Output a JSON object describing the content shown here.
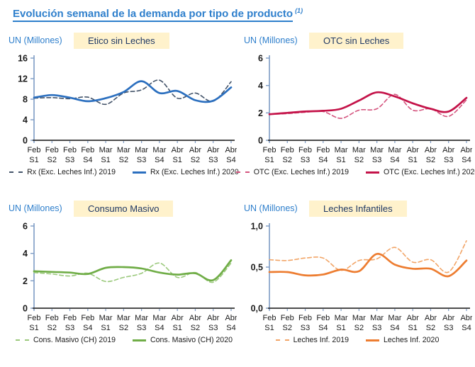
{
  "page_title": {
    "text": "Evolución semanal de la demanda por tipo de producto",
    "footnote_marker": "(1)"
  },
  "styles": {
    "accent_blue": "#2E7FCC",
    "box_bg": "#FFF2CC",
    "box_text": "#1F3864",
    "y_axis_color": "#7D9BC4",
    "x_axis_color": "#333333",
    "tick_text": "#1A1A1A"
  },
  "chart_data": [
    {
      "type": "line",
      "title": "Etico sin Leches",
      "ylabel": "UN (Millones)",
      "ylim": [
        0,
        16
      ],
      "yticks": [
        {
          "value": 0,
          "label": "0"
        },
        {
          "value": 4,
          "label": "4"
        },
        {
          "value": 8,
          "label": "8"
        },
        {
          "value": 12,
          "label": "12"
        },
        {
          "value": 16,
          "label": "16"
        }
      ],
      "categories": [
        "Feb S1",
        "Feb S2",
        "Feb S3",
        "Feb S4",
        "Mar S1",
        "Mar S2",
        "Mar S3",
        "Mar S4",
        "Abr S1",
        "Abr S2",
        "Abr S3",
        "Abr S4"
      ],
      "grid": false,
      "legend_position": "bottom",
      "series": [
        {
          "name": "Rx (Exc. Leches Inf.) 2019",
          "style": "dashed",
          "color": "#44546A",
          "values": [
            8.2,
            8.3,
            8.1,
            8.4,
            7.0,
            9.2,
            9.8,
            11.7,
            8.2,
            9.2,
            7.6,
            11.4
          ]
        },
        {
          "name": "Rx (Exc. Leches Inf.) 2020",
          "style": "solid",
          "color": "#2B6FBF",
          "values": [
            8.3,
            8.8,
            8.3,
            7.6,
            8.2,
            9.4,
            11.5,
            9.2,
            9.6,
            7.8,
            7.7,
            10.3
          ]
        }
      ]
    },
    {
      "type": "line",
      "title": "OTC sin Leches",
      "ylabel": "UN (Millones)",
      "ylim": [
        0,
        6
      ],
      "yticks": [
        {
          "value": 0,
          "label": "0"
        },
        {
          "value": 2,
          "label": "2"
        },
        {
          "value": 4,
          "label": "4"
        },
        {
          "value": 6,
          "label": "6"
        }
      ],
      "categories": [
        "Feb S1",
        "Feb S2",
        "Feb S3",
        "Feb S4",
        "Mar S1",
        "Mar S2",
        "Mar S3",
        "Mar S4",
        "Abr S1",
        "Abr S2",
        "Abr S3",
        "Abr S4"
      ],
      "grid": false,
      "legend_position": "bottom",
      "series": [
        {
          "name": "OTC (Exc. Leches Inf.) 2019",
          "style": "dashed",
          "color": "#D4547E",
          "values": [
            1.9,
            1.95,
            2.05,
            2.1,
            1.6,
            2.2,
            2.3,
            3.35,
            2.2,
            2.3,
            1.75,
            2.95
          ]
        },
        {
          "name": "OTC (Exc. Leches Inf.) 2020",
          "style": "solid",
          "color": "#C41349",
          "values": [
            1.9,
            2.0,
            2.1,
            2.15,
            2.3,
            2.9,
            3.5,
            3.2,
            2.7,
            2.3,
            2.1,
            3.1
          ]
        }
      ]
    },
    {
      "type": "line",
      "title": "Consumo Masivo",
      "ylabel": "UN (Millones)",
      "ylim": [
        0,
        6
      ],
      "yticks": [
        {
          "value": 0,
          "label": "0"
        },
        {
          "value": 2,
          "label": "2"
        },
        {
          "value": 4,
          "label": "4"
        },
        {
          "value": 6,
          "label": "6"
        }
      ],
      "categories": [
        "Feb S1",
        "Feb S2",
        "Feb S3",
        "Feb S4",
        "Mar S1",
        "Mar S2",
        "Mar S3",
        "Mar S4",
        "Abr S1",
        "Abr S2",
        "Abr S3",
        "Abr S4"
      ],
      "grid": false,
      "legend_position": "bottom",
      "series": [
        {
          "name": "Cons. Masivo (CH) 2019",
          "style": "dashed",
          "color": "#9BC97C",
          "values": [
            2.6,
            2.5,
            2.35,
            2.55,
            1.95,
            2.25,
            2.55,
            3.3,
            2.25,
            2.6,
            1.9,
            3.3
          ]
        },
        {
          "name": "Cons. Masivo (CH) 2020",
          "style": "solid",
          "color": "#70AD47",
          "values": [
            2.7,
            2.65,
            2.6,
            2.5,
            2.95,
            3.0,
            2.9,
            2.6,
            2.45,
            2.55,
            2.05,
            3.5
          ]
        }
      ]
    },
    {
      "type": "line",
      "title": "Leches Infantiles",
      "ylabel": "UN (Millones)",
      "ylim": [
        0,
        1
      ],
      "yticks": [
        {
          "value": 0,
          "label": "0,0"
        },
        {
          "value": 0.5,
          "label": "0,5"
        },
        {
          "value": 1,
          "label": "1,0"
        }
      ],
      "categories": [
        "Feb S1",
        "Feb S2",
        "Feb S3",
        "Feb S4",
        "Mar S1",
        "Mar S2",
        "Mar S3",
        "Mar S4",
        "Abr S1",
        "Abr S2",
        "Abr S3",
        "Abr S4"
      ],
      "grid": false,
      "legend_position": "bottom",
      "series": [
        {
          "name": "Leches Inf. 2019",
          "style": "dashed",
          "color": "#F2A567",
          "values": [
            0.59,
            0.58,
            0.61,
            0.61,
            0.46,
            0.58,
            0.6,
            0.74,
            0.56,
            0.59,
            0.44,
            0.82
          ]
        },
        {
          "name": "Leches Inf. 2020",
          "style": "solid",
          "color": "#ED7D31",
          "values": [
            0.44,
            0.44,
            0.4,
            0.41,
            0.47,
            0.45,
            0.66,
            0.53,
            0.48,
            0.48,
            0.39,
            0.58
          ]
        }
      ]
    }
  ]
}
